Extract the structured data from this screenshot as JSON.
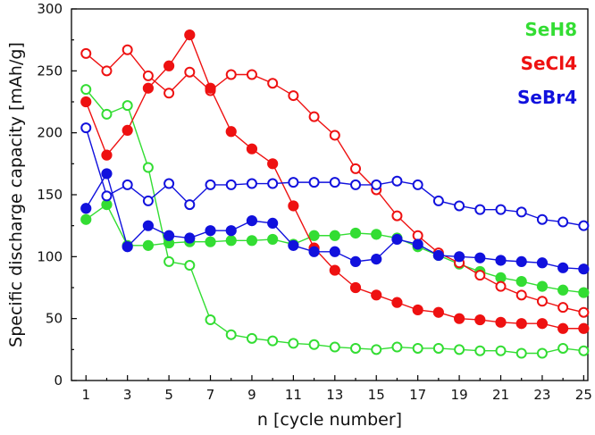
{
  "chart_data": {
    "type": "line",
    "xlabel": "n [cycle number]",
    "ylabel": "Specific discharge capacity [mAh/g]",
    "xlim": [
      0.3,
      25.2
    ],
    "ylim": [
      0,
      300
    ],
    "xticks": [
      1,
      3,
      5,
      7,
      9,
      11,
      13,
      15,
      17,
      19,
      21,
      23,
      25
    ],
    "yticks": [
      0,
      50,
      100,
      150,
      200,
      250,
      300
    ],
    "x": [
      1,
      2,
      3,
      4,
      5,
      6,
      7,
      8,
      9,
      10,
      11,
      12,
      13,
      14,
      15,
      16,
      17,
      18,
      19,
      20,
      21,
      22,
      23,
      24,
      25
    ],
    "legend": [
      {
        "label": "SeH8",
        "color": "#33dd33"
      },
      {
        "label": "SeCl4",
        "color": "#ee1111"
      },
      {
        "label": "SeBr4",
        "color": "#1111dd"
      }
    ],
    "series": [
      {
        "name": "SeH8 (open)",
        "color": "#33dd33",
        "marker": "open",
        "values": [
          235,
          215,
          222,
          172,
          96,
          93,
          49,
          37,
          34,
          32,
          30,
          29,
          27,
          26,
          25,
          27,
          26,
          26,
          25,
          24,
          24,
          22,
          22,
          26,
          24
        ]
      },
      {
        "name": "SeH8 (filled)",
        "color": "#33dd33",
        "marker": "filled",
        "values": [
          130,
          142,
          109,
          109,
          111,
          112,
          112,
          113,
          113,
          114,
          110,
          117,
          117,
          119,
          118,
          115,
          108,
          101,
          94,
          88,
          83,
          80,
          76,
          73,
          71
        ]
      },
      {
        "name": "SeCl4 (open)",
        "color": "#ee1111",
        "marker": "open",
        "values": [
          264,
          250,
          267,
          246,
          232,
          249,
          234,
          247,
          247,
          240,
          230,
          213,
          198,
          171,
          154,
          133,
          117,
          103,
          95,
          85,
          76,
          69,
          64,
          59,
          55
        ]
      },
      {
        "name": "SeCl4 (filled)",
        "color": "#ee1111",
        "marker": "filled",
        "values": [
          225,
          182,
          202,
          236,
          254,
          279,
          236,
          201,
          187,
          175,
          141,
          107,
          89,
          75,
          69,
          63,
          57,
          55,
          50,
          49,
          47,
          46,
          46,
          42,
          42
        ]
      },
      {
        "name": "SeBr4 (open)",
        "color": "#1111dd",
        "marker": "open",
        "values": [
          204,
          149,
          158,
          145,
          159,
          142,
          158,
          158,
          159,
          159,
          160,
          160,
          160,
          158,
          158,
          161,
          158,
          145,
          141,
          138,
          138,
          136,
          130,
          128,
          125
        ]
      },
      {
        "name": "SeBr4 (filled)",
        "color": "#1111dd",
        "marker": "filled",
        "values": [
          139,
          167,
          108,
          125,
          117,
          115,
          121,
          121,
          129,
          127,
          109,
          104,
          104,
          96,
          98,
          114,
          110,
          101,
          100,
          99,
          97,
          96,
          95,
          91,
          90
        ]
      }
    ]
  }
}
